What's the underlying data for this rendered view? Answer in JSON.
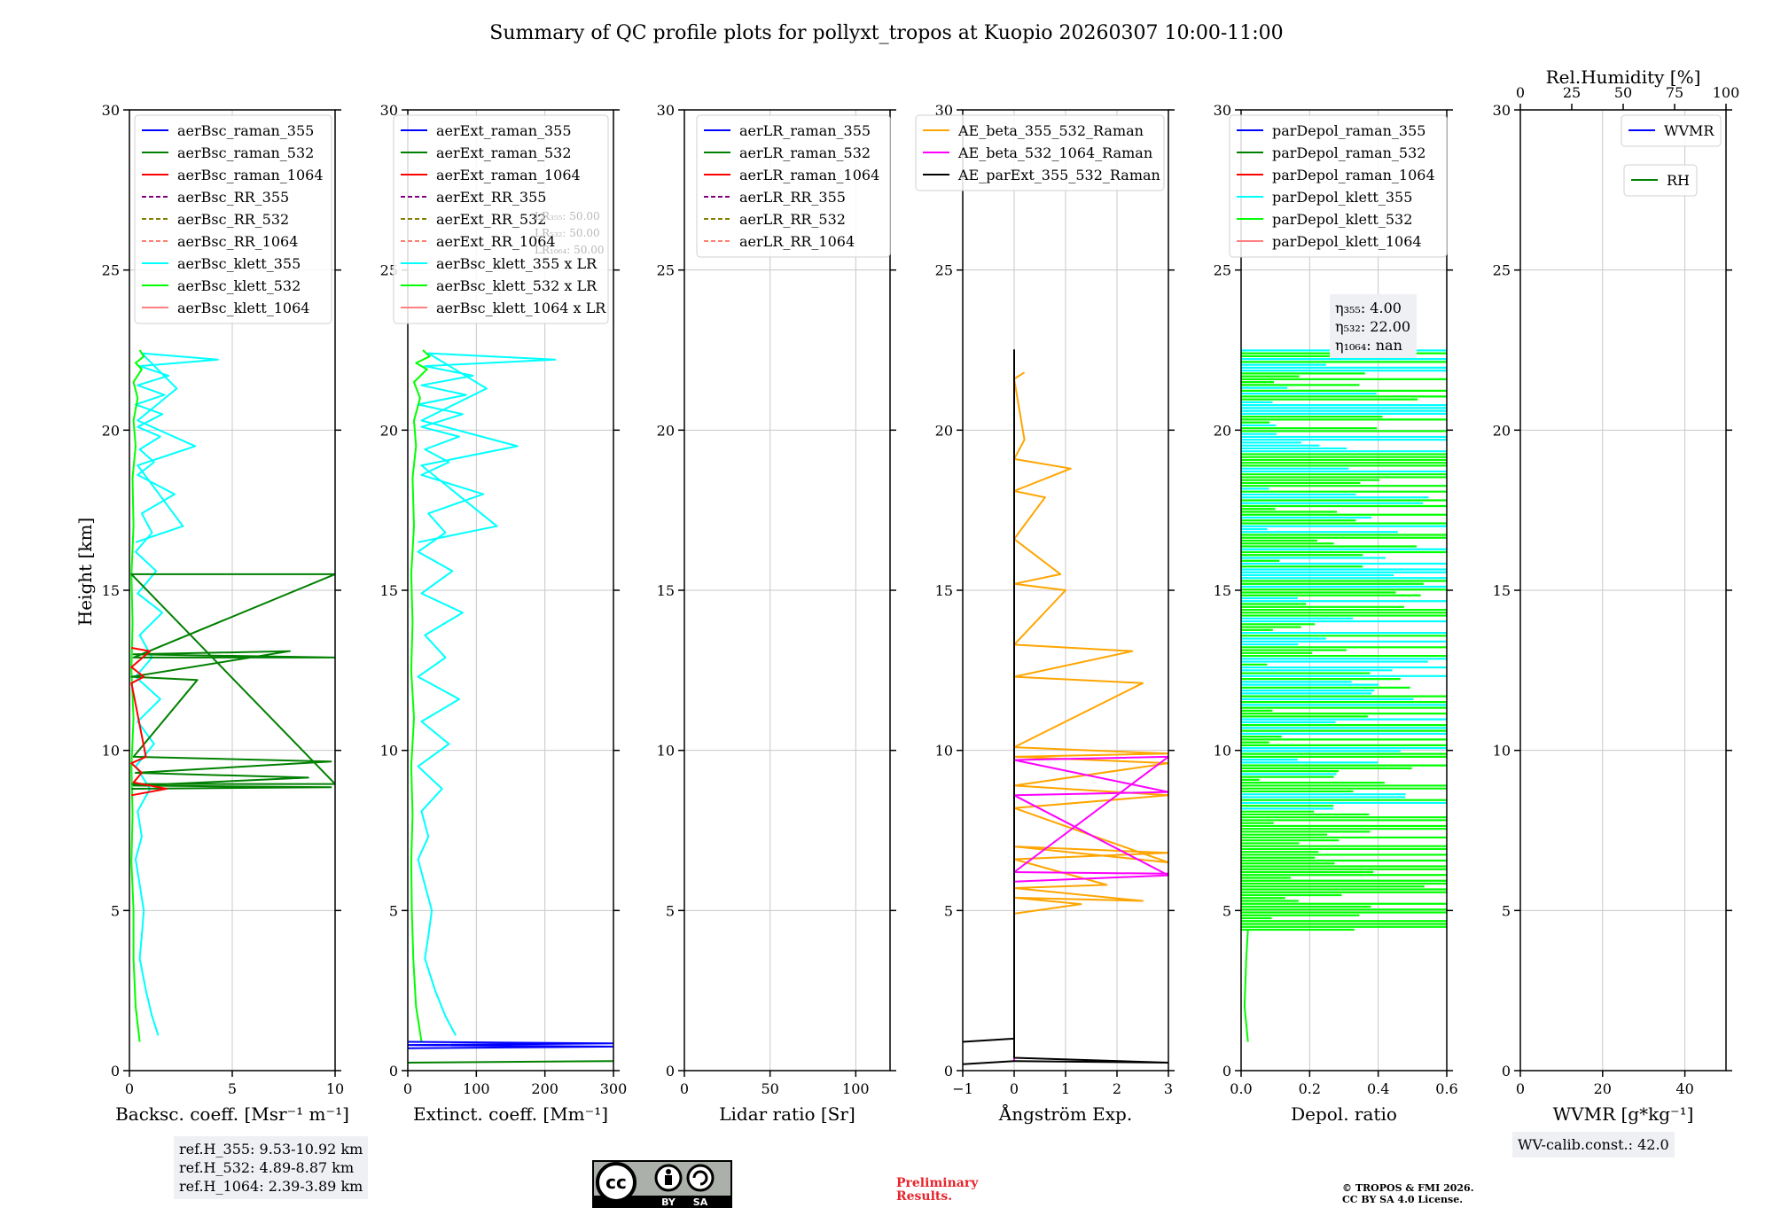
{
  "figure": {
    "title": "Summary of QC profile plots for pollyxt_tropos at Kuopio 20260307 10:00-11:00",
    "ylabel": "Height [km]",
    "yticks": [
      "0",
      "5",
      "10",
      "15",
      "20",
      "25",
      "30"
    ]
  },
  "chart_data": [
    {
      "type": "line",
      "title": "",
      "xlabel": "Backsc. coeff. [Msr⁻¹ m⁻¹]",
      "ylabel": "Height [km]",
      "xlim": [
        0,
        10
      ],
      "ylim": [
        0,
        30
      ],
      "xticks": [
        "0",
        "5",
        "10"
      ],
      "legend": [
        "aerBsc_raman_355",
        "aerBsc_raman_532",
        "aerBsc_raman_1064",
        "aerBsc_RR_355",
        "aerBsc_RR_532",
        "aerBsc_RR_1064",
        "aerBsc_klett_355",
        "aerBsc_klett_532",
        "aerBsc_klett_1064"
      ],
      "legend_colors": [
        "#0000ff",
        "#008000",
        "#ff0000",
        "#800080",
        "#808000",
        "#fa8072",
        "#00ffff",
        "#00ff00",
        "#ff8080"
      ],
      "legend_styles": [
        "solid",
        "solid",
        "solid",
        "dashed",
        "dashed",
        "dashed",
        "solid",
        "solid",
        "solid"
      ],
      "legend_position": "top-right",
      "series": [
        {
          "name": "aerBsc_klett_355",
          "color": "#00ffff",
          "x": [
            1.4,
            1.1,
            0.8,
            0.5,
            0.6,
            0.7,
            0.5,
            0.3,
            0.6,
            0.4,
            1.0,
            0.3,
            1.2,
            0.4,
            1.5,
            0.3,
            1.1,
            0.5,
            1.6,
            0.4,
            1.3,
            0.3,
            1.1,
            0.6,
            2.2,
            0.4,
            1.2,
            0.5,
            1.5,
            0.4,
            1.6,
            0.3,
            1.7,
            0.4,
            1.9,
            0.5,
            4.3,
            0.6,
            2.3,
            0.4,
            3.2,
            0.4,
            2.6,
            0.3
          ],
          "y": [
            1.1,
            1.7,
            2.5,
            3.5,
            4.2,
            5.0,
            5.8,
            6.6,
            7.3,
            8.1,
            8.8,
            9.5,
            10.2,
            10.9,
            11.6,
            12.3,
            12.9,
            13.6,
            14.3,
            14.9,
            15.6,
            16.2,
            16.8,
            17.4,
            18.0,
            18.6,
            19.0,
            19.4,
            19.8,
            20.1,
            20.5,
            20.8,
            21.1,
            21.4,
            21.7,
            22.0,
            22.2,
            22.4,
            21.3,
            20.3,
            19.5,
            18.9,
            17.0,
            16.5
          ]
        },
        {
          "name": "aerBsc_klett_532",
          "color": "#00ff00",
          "x": [
            0.5,
            0.3,
            0.2,
            0.2,
            0.1,
            0.15,
            0.1,
            0.2,
            0.1,
            0.15,
            0.1,
            0.2,
            0.15,
            0.3,
            0.2,
            0.4,
            0.2,
            0.6,
            0.3,
            0.7,
            0.5
          ],
          "y": [
            0.9,
            2.0,
            3.5,
            5.0,
            6.5,
            8.0,
            9.5,
            11.0,
            12.5,
            14.0,
            15.5,
            17.0,
            18.5,
            19.5,
            20.3,
            21.0,
            21.5,
            21.9,
            22.1,
            22.3,
            22.5
          ]
        },
        {
          "name": "aerBsc_raman_532",
          "color": "#008000",
          "x": [
            0.1,
            9.8,
            0.2,
            8.7,
            0.3,
            9.8,
            0.2,
            3.3,
            0.1,
            7.8,
            0.2,
            10,
            0.2,
            10,
            0.1,
            10,
            0.1
          ],
          "y": [
            8.8,
            8.85,
            8.9,
            9.15,
            9.3,
            9.65,
            9.8,
            12.2,
            12.3,
            13.1,
            13.0,
            12.9,
            12.9,
            15.5,
            15.5,
            8.95,
            8.95
          ]
        },
        {
          "name": "aerBsc_raman_1064",
          "color": "#ff0000",
          "x": [
            0.1,
            1.8,
            0.2,
            0.6,
            0.1,
            0.8,
            0.1,
            0.7,
            0.1,
            1.0,
            0.1
          ],
          "y": [
            8.6,
            8.8,
            9.0,
            9.3,
            9.6,
            9.8,
            12.1,
            12.3,
            12.6,
            13.1,
            13.2
          ]
        }
      ]
    },
    {
      "type": "line",
      "xlabel": "Extinct. coeff. [Mm⁻¹]",
      "xlim": [
        0,
        300
      ],
      "ylim": [
        0,
        30
      ],
      "xticks": [
        "0",
        "100",
        "200",
        "300"
      ],
      "legend": [
        "aerExt_raman_355",
        "aerExt_raman_532",
        "aerExt_raman_1064",
        "aerExt_RR_355",
        "aerExt_RR_532",
        "aerExt_RR_1064",
        "aerBsc_klett_355 x LR",
        "aerBsc_klett_532 x LR",
        "aerBsc_klett_1064 x LR"
      ],
      "legend_colors": [
        "#0000ff",
        "#008000",
        "#ff0000",
        "#800080",
        "#808000",
        "#fa8072",
        "#00ffff",
        "#00ff00",
        "#ff8080"
      ],
      "legend_styles": [
        "solid",
        "solid",
        "solid",
        "dashed",
        "dashed",
        "dashed",
        "solid",
        "solid",
        "solid"
      ],
      "legend_position": "top-right",
      "annotation": [
        "LR₃₅₅: 50.00",
        "LR₅₃₂: 50.00",
        "LR₁₀₆₄: 50.00"
      ],
      "series": [
        {
          "name": "aerBsc_klett_355 x LR",
          "color": "#00ffff",
          "x": [
            70,
            55,
            40,
            25,
            30,
            35,
            25,
            15,
            30,
            20,
            50,
            15,
            60,
            20,
            75,
            15,
            55,
            25,
            80,
            20,
            65,
            15,
            55,
            30,
            110,
            20,
            60,
            25,
            75,
            20,
            80,
            15,
            85,
            20,
            95,
            25,
            215,
            30,
            115,
            20,
            160,
            20,
            130,
            15
          ],
          "y": [
            1.1,
            1.7,
            2.5,
            3.5,
            4.2,
            5.0,
            5.8,
            6.6,
            7.3,
            8.1,
            8.8,
            9.5,
            10.2,
            10.9,
            11.6,
            12.3,
            12.9,
            13.6,
            14.3,
            14.9,
            15.6,
            16.2,
            16.8,
            17.4,
            18.0,
            18.6,
            19.0,
            19.4,
            19.8,
            20.1,
            20.5,
            20.8,
            21.1,
            21.4,
            21.7,
            22.0,
            22.2,
            22.4,
            21.3,
            20.3,
            19.5,
            18.9,
            17.0,
            16.5
          ]
        },
        {
          "name": "aerBsc_klett_532 x LR",
          "color": "#00ff00",
          "x": [
            20,
            12,
            8,
            6,
            5,
            7,
            5,
            9,
            5,
            7,
            5,
            9,
            7,
            12,
            9,
            18,
            9,
            28,
            12,
            32,
            22
          ],
          "y": [
            0.9,
            2.0,
            3.5,
            5.0,
            6.5,
            8.0,
            9.5,
            11.0,
            12.5,
            14.0,
            15.5,
            17.0,
            18.5,
            19.5,
            20.3,
            21.0,
            21.5,
            21.9,
            22.1,
            22.3,
            22.5
          ]
        },
        {
          "name": "aerExt_raman_355",
          "color": "#0000ff",
          "x": [
            0,
            300,
            0,
            300,
            0
          ],
          "y": [
            0.7,
            0.75,
            0.8,
            0.85,
            0.9
          ]
        },
        {
          "name": "aerExt_raman_532",
          "color": "#008000",
          "x": [
            0,
            300
          ],
          "y": [
            0.25,
            0.3
          ]
        }
      ]
    },
    {
      "type": "line",
      "xlabel": "Lidar ratio [Sr]",
      "xlim": [
        0,
        120
      ],
      "ylim": [
        0,
        30
      ],
      "xticks": [
        "0",
        "50",
        "100"
      ],
      "legend": [
        "aerLR_raman_355",
        "aerLR_raman_532",
        "aerLR_raman_1064",
        "aerLR_RR_355",
        "aerLR_RR_532",
        "aerLR_RR_1064"
      ],
      "legend_colors": [
        "#0000ff",
        "#008000",
        "#ff0000",
        "#800080",
        "#808000",
        "#fa8072"
      ],
      "legend_styles": [
        "solid",
        "solid",
        "solid",
        "dashed",
        "dashed",
        "dashed"
      ],
      "legend_position": "top-right",
      "series": []
    },
    {
      "type": "line",
      "xlabel": "Ångström Exp.",
      "xlim": [
        -1,
        3
      ],
      "ylim": [
        0,
        30
      ],
      "xticks": [
        "−1",
        "0",
        "1",
        "2",
        "3"
      ],
      "legend": [
        "AE_beta_355_532_Raman",
        "AE_beta_532_1064_Raman",
        "AE_parExt_355_532_Raman"
      ],
      "legend_colors": [
        "#ffa500",
        "#ff00ff",
        "#000000"
      ],
      "legend_styles": [
        "solid",
        "solid",
        "solid"
      ],
      "legend_position": "top-right",
      "series": [
        {
          "name": "AE_beta_355_532_Raman",
          "color": "#ffa500",
          "x": [
            0,
            1.3,
            0,
            2.5,
            0,
            1.8,
            0,
            3,
            0,
            3,
            0,
            3,
            0,
            3,
            0,
            3,
            0,
            2.5,
            0,
            2.3,
            0,
            1.0,
            0,
            0.9,
            0,
            0.6,
            0,
            1.1,
            0,
            0.2,
            0,
            0.2
          ],
          "y": [
            4.9,
            5.2,
            5.4,
            5.3,
            5.7,
            5.8,
            6.6,
            6.8,
            7.0,
            6.5,
            8.2,
            8.6,
            8.9,
            9.6,
            9.8,
            9.9,
            10.1,
            12.1,
            12.3,
            13.1,
            13.3,
            15.0,
            15.2,
            15.5,
            16.6,
            17.9,
            18.1,
            18.8,
            19.1,
            19.7,
            21.6,
            21.8
          ]
        },
        {
          "name": "AE_beta_532_1064_Raman",
          "color": "#ff00ff",
          "x": [
            0,
            0,
            3,
            0,
            3,
            0,
            3,
            0,
            3
          ],
          "y": [
            0.3,
            5.9,
            6.1,
            8.6,
            8.7,
            9.7,
            9.8,
            6.2,
            6.15
          ]
        },
        {
          "name": "AE_parExt_355_532_Raman",
          "color": "#000000",
          "x": [
            -1,
            0,
            0,
            0,
            3,
            0,
            -1
          ],
          "y": [
            0.9,
            1.0,
            22.5,
            0.4,
            0.25,
            0.3,
            0.2
          ]
        }
      ]
    },
    {
      "type": "line",
      "xlabel": "Depol. ratio",
      "xlim": [
        0.0,
        0.6
      ],
      "ylim": [
        0,
        30
      ],
      "xticks": [
        "0.0",
        "0.2",
        "0.4",
        "0.6"
      ],
      "legend": [
        "parDepol_raman_355",
        "parDepol_raman_532",
        "parDepol_raman_1064",
        "parDepol_klett_355",
        "parDepol_klett_532",
        "parDepol_klett_1064"
      ],
      "legend_colors": [
        "#0000ff",
        "#008000",
        "#ff0000",
        "#00ffff",
        "#00ff00",
        "#ff8080"
      ],
      "legend_styles": [
        "solid",
        "solid",
        "solid",
        "solid",
        "solid",
        "solid"
      ],
      "legend_position": "top-right",
      "annotation": [
        "η₃₅₅: 4.00",
        "η₅₃₂: 22.00",
        "η₁₀₆₄: nan"
      ],
      "series": [
        {
          "name": "parDepol_klett_532",
          "color": "#00ff00",
          "note": "dense spikes between 4.4 and 22.5 km reaching up to 0.6"
        },
        {
          "name": "parDepol_klett_355",
          "color": "#00ffff",
          "note": "dense spikes between 8 and 22.5 km reaching up to 0.6"
        }
      ]
    },
    {
      "type": "line",
      "xlabel": "WVMR [g*kg⁻¹]",
      "top_xlabel": "Rel.Humidity [%]",
      "xlim": [
        0,
        50
      ],
      "ylim": [
        0,
        30
      ],
      "xticks": [
        "0",
        "20",
        "40"
      ],
      "top_xticks": [
        "0",
        "25",
        "50",
        "75",
        "100"
      ],
      "legend": [
        "WVMR"
      ],
      "legend_colors": [
        "#0000ff"
      ],
      "legend2": [
        "RH"
      ],
      "legend2_colors": [
        "#008000"
      ],
      "legend_position": "top-right",
      "series": []
    }
  ],
  "notes": {
    "refh_lines": [
      "ref.H_355: 9.53-10.92 km",
      "ref.H_532: 4.89-8.87 km",
      "ref.H_1064: 2.39-3.89 km"
    ],
    "wv_calib": "WV-calib.const.: 42.0",
    "preliminary_line1": "Preliminary",
    "preliminary_line2": "Results.",
    "copyright_line1": "© TROPOS & FMI 2026.",
    "copyright_line2": "CC BY SA 4.0 License.",
    "cc_label_by": "BY",
    "cc_label_sa": "SA",
    "cc_label_cc": "cc"
  }
}
